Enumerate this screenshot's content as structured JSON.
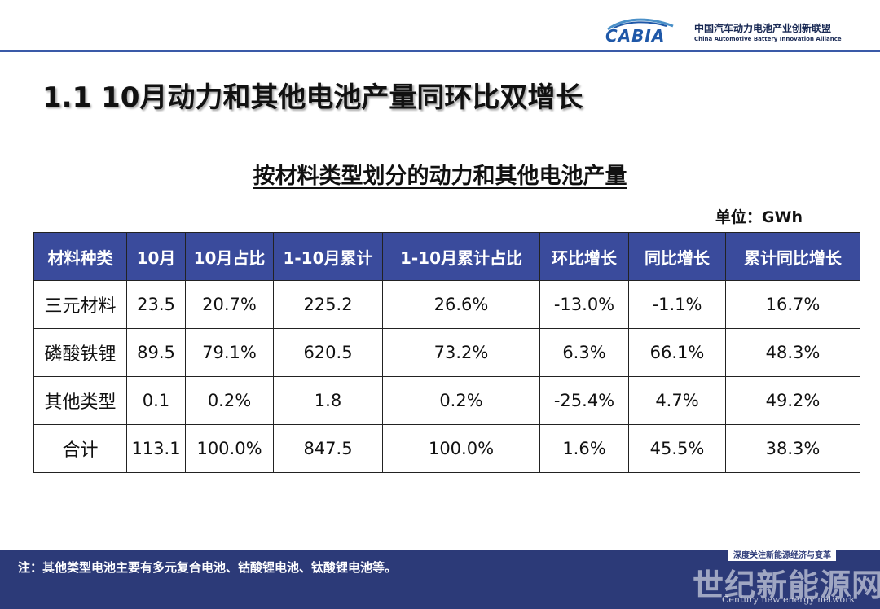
{
  "header": {
    "logo_text": "CABIA",
    "org_cn": "中国汽车动力电池产业创新联盟",
    "org_en": "China Automotive Battery Innovation Alliance"
  },
  "slide_title": "1.1 10月动力和其他电池产量同环比双增长",
  "table_title": "按材料类型划分的动力和其他电池产量",
  "unit": "单位：GWh",
  "table": {
    "columns": [
      "材料种类",
      "10月",
      "10月占比",
      "1-10月累计",
      "1-10月累计占比",
      "环比增长",
      "同比增长",
      "累计同比增长"
    ],
    "rows": [
      [
        "三元材料",
        "23.5",
        "20.7%",
        "225.2",
        "26.6%",
        "-13.0%",
        "-1.1%",
        "16.7%"
      ],
      [
        "磷酸铁锂",
        "89.5",
        "79.1%",
        "620.5",
        "73.2%",
        "6.3%",
        "66.1%",
        "48.3%"
      ],
      [
        "其他类型",
        "0.1",
        "0.2%",
        "1.8",
        "0.2%",
        "-25.4%",
        "4.7%",
        "49.2%"
      ],
      [
        "合计",
        "113.1",
        "100.0%",
        "847.5",
        "100.0%",
        "1.6%",
        "45.5%",
        "38.3%"
      ]
    ]
  },
  "footer": {
    "note": "注：其他类型电池主要有多元复合电池、钴酸锂电池、钛酸锂电池等。",
    "watermark_tag": "深度关注新能源经济与变革",
    "watermark_cn": "世纪新能源网",
    "watermark_en": "Century new energy network"
  },
  "colors": {
    "accent": "#3a4b9c",
    "footer": "#2c3a78",
    "brand": "#1f58a8"
  }
}
